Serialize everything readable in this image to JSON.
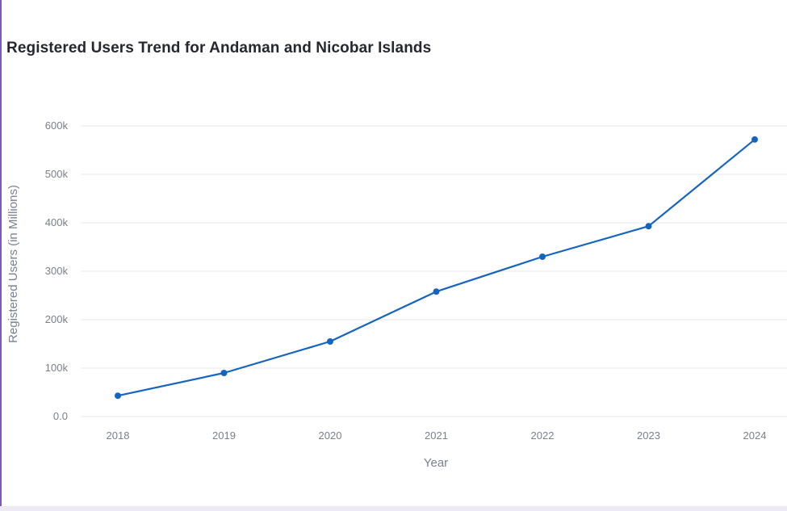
{
  "chart_data": {
    "type": "line",
    "title": "Registered Users Trend for Andaman and Nicobar Islands",
    "xlabel": "Year",
    "ylabel": "Registered Users (in Millions)",
    "categories": [
      "2018",
      "2019",
      "2020",
      "2021",
      "2022",
      "2023",
      "2024"
    ],
    "series": [
      {
        "values": [
          43000,
          90000,
          155000,
          258000,
          330000,
          393000,
          572000
        ]
      }
    ],
    "ylim": [
      0,
      600000
    ],
    "yticks": [
      0,
      100000,
      200000,
      300000,
      400000,
      500000,
      600000
    ],
    "ytick_labels": [
      "0.0",
      "100k",
      "200k",
      "300k",
      "400k",
      "500k",
      "600k"
    ],
    "grid": true,
    "legend": "none",
    "line_color": "#1565c0"
  }
}
